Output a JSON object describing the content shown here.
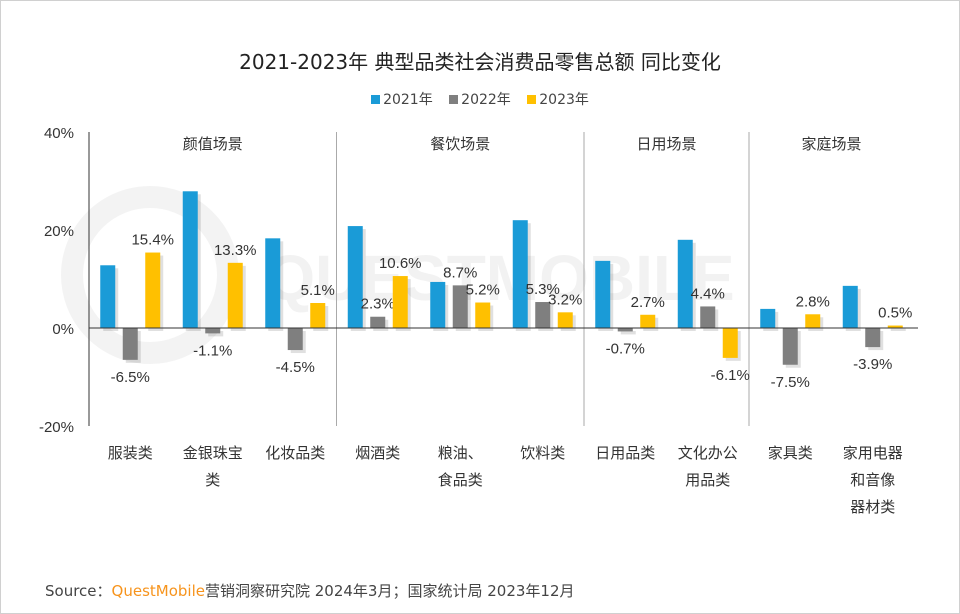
{
  "chart_data": {
    "type": "bar",
    "title": "2021-2023年 典型品类社会消费品零售总额 同比变化",
    "categories": [
      "服装类",
      "金银珠宝类",
      "化妆品类",
      "烟酒类",
      "粮油、食品类",
      "饮料类",
      "日用品类",
      "文化办公用品类",
      "家具类",
      "家用电器和音像器材类"
    ],
    "category_label_lines": [
      [
        "服装类"
      ],
      [
        "金银珠宝",
        "类"
      ],
      [
        "化妆品类"
      ],
      [
        "烟酒类"
      ],
      [
        "粮油、",
        "食品类"
      ],
      [
        "饮料类"
      ],
      [
        "日用品类"
      ],
      [
        "文化办公",
        "用品类"
      ],
      [
        "家具类"
      ],
      [
        "家用电器",
        "和音像",
        "器材类"
      ]
    ],
    "groups": [
      {
        "label": "颜值场景",
        "categories": [
          0,
          1,
          2
        ]
      },
      {
        "label": "餐饮场景",
        "categories": [
          3,
          4,
          5
        ]
      },
      {
        "label": "日用场景",
        "categories": [
          6,
          7
        ]
      },
      {
        "label": "家庭场景",
        "categories": [
          8,
          9
        ]
      }
    ],
    "series": [
      {
        "name": "2021年",
        "color": "#1a9bd7",
        "values": [
          12.8,
          27.9,
          18.3,
          20.8,
          9.4,
          22.0,
          13.7,
          18.0,
          3.9,
          8.6
        ],
        "labeled": false
      },
      {
        "name": "2022年",
        "color": "#7f7f7f",
        "values": [
          -6.5,
          -1.1,
          -4.5,
          2.3,
          8.7,
          5.3,
          -0.7,
          4.4,
          -7.5,
          -3.9
        ],
        "labeled": true,
        "labels": [
          "-6.5%",
          "-1.1%",
          "-4.5%",
          "2.3%",
          "8.7%",
          "5.3%",
          "-0.7%",
          "4.4%",
          "-7.5%",
          "-3.9%"
        ]
      },
      {
        "name": "2023年",
        "color": "#ffc000",
        "values": [
          15.4,
          13.3,
          5.1,
          10.6,
          5.2,
          3.2,
          2.7,
          -6.1,
          2.8,
          0.5
        ],
        "labeled": true,
        "labels": [
          "15.4%",
          "13.3%",
          "5.1%",
          "10.6%",
          "5.2%",
          "3.2%",
          "2.7%",
          "-6.1%",
          "2.8%",
          "0.5%"
        ]
      }
    ],
    "ylim": [
      -20,
      40
    ],
    "yticks": [
      -20,
      0,
      20,
      40
    ],
    "ytick_labels": [
      "-20%",
      "0%",
      "20%",
      "40%"
    ],
    "grid": false,
    "legend": "top-center",
    "xlabel": "",
    "ylabel": ""
  },
  "source": {
    "prefix": "Source：",
    "brand": "QuestMobile",
    "text": "营销洞察研究院 2024年3月；国家统计局 2023年12月"
  },
  "watermark": "QUESTMOBILE"
}
